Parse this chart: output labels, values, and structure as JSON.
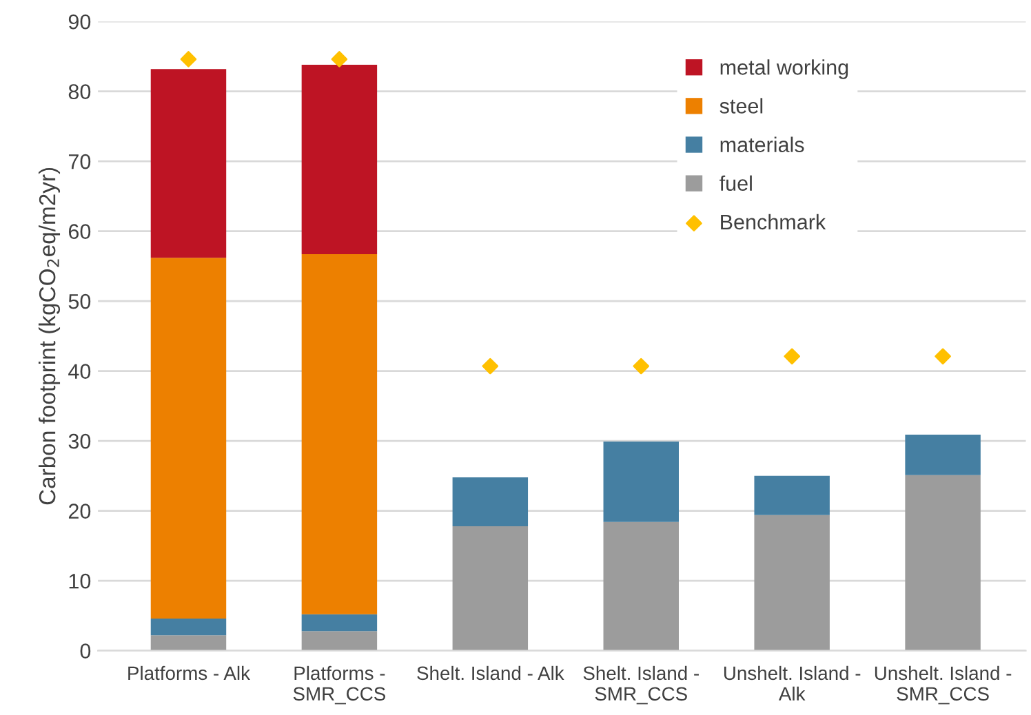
{
  "chart_data": {
    "type": "bar",
    "stacked": true,
    "ylabel": "Carbon footprint (kgCO$_{2}$eq/m2yr)",
    "categories": [
      "Platforms - Alk",
      "Platforms -\nSMR_CCS",
      "Shelt. Island - Alk",
      "Shelt. Island -\nSMR_CCS",
      "Unshelt. Island -\nAlk",
      "Unshelt. Island -\nSMR_CCS"
    ],
    "series": [
      {
        "name": "fuel",
        "color": "#9c9c9c",
        "values": [
          2.2,
          2.8,
          17.8,
          18.4,
          19.4,
          25.1
        ]
      },
      {
        "name": "materials",
        "color": "#457fa2",
        "values": [
          2.4,
          2.4,
          7.0,
          11.5,
          5.6,
          5.8
        ]
      },
      {
        "name": "steel",
        "color": "#ed8000",
        "values": [
          51.6,
          51.5,
          null,
          null,
          null,
          null
        ]
      },
      {
        "name": "metal working",
        "color": "#be1424",
        "values": [
          27.0,
          27.1,
          null,
          null,
          null,
          null
        ]
      },
      {
        "name": "Benchmark",
        "type": "scatter",
        "color": "#ffc000",
        "marker": "diamond",
        "values": [
          84.6,
          84.6,
          40.7,
          40.7,
          42.1,
          42.1
        ]
      }
    ],
    "ylim": [
      0,
      90
    ],
    "yticks": [
      0,
      10,
      20,
      30,
      40,
      50,
      60,
      70,
      80,
      90
    ],
    "grid": "y",
    "legend": "top right"
  }
}
